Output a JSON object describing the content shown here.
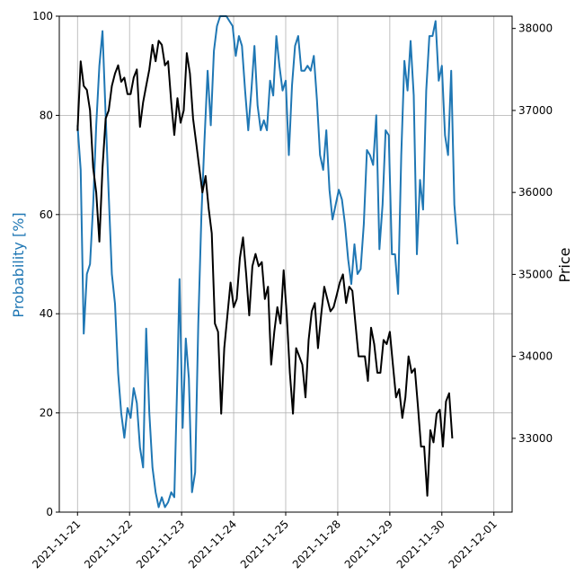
{
  "chart_data": {
    "type": "line",
    "title": "",
    "xlabel": "",
    "ylabel": "Probability [%]",
    "y2label": "Price",
    "ylim": [
      0,
      100
    ],
    "y2lim": [
      32100,
      38150
    ],
    "xlim": [
      -0.35,
      8.35
    ],
    "grid": true,
    "x_tick_labels": [
      "2021-11-21",
      "2021-11-22",
      "2021-11-23",
      "2021-11-24",
      "2021-11-25",
      "2021-11-28",
      "2021-11-29",
      "2021-11-30",
      "2021-12-01"
    ],
    "y_ticks": [
      0,
      20,
      40,
      60,
      80,
      100
    ],
    "y2_ticks": [
      33000,
      34000,
      35000,
      36000,
      37000,
      38000
    ],
    "colors": {
      "probability": "#1f77b4",
      "price": "#000000",
      "grid": "#b0b0b0"
    },
    "series": [
      {
        "axis": "left",
        "color": "#1f77b4",
        "points": [
          [
            0.0,
            78
          ],
          [
            0.06,
            69
          ],
          [
            0.12,
            36
          ],
          [
            0.18,
            48
          ],
          [
            0.24,
            50
          ],
          [
            0.3,
            62
          ],
          [
            0.36,
            78
          ],
          [
            0.42,
            90
          ],
          [
            0.48,
            97
          ],
          [
            0.54,
            80
          ],
          [
            0.6,
            64
          ],
          [
            0.66,
            48
          ],
          [
            0.72,
            42
          ],
          [
            0.78,
            28
          ],
          [
            0.84,
            20
          ],
          [
            0.9,
            15
          ],
          [
            0.96,
            21
          ],
          [
            1.02,
            19
          ],
          [
            1.08,
            25
          ],
          [
            1.14,
            22
          ],
          [
            1.2,
            13
          ],
          [
            1.26,
            9
          ],
          [
            1.32,
            37
          ],
          [
            1.38,
            20
          ],
          [
            1.44,
            9
          ],
          [
            1.5,
            4
          ],
          [
            1.56,
            1
          ],
          [
            1.62,
            3
          ],
          [
            1.68,
            1
          ],
          [
            1.74,
            2
          ],
          [
            1.8,
            4
          ],
          [
            1.86,
            3
          ],
          [
            1.92,
            28
          ],
          [
            1.96,
            47
          ],
          [
            2.02,
            17
          ],
          [
            2.08,
            35
          ],
          [
            2.14,
            27
          ],
          [
            2.2,
            4
          ],
          [
            2.26,
            8
          ],
          [
            2.32,
            38
          ],
          [
            2.38,
            60
          ],
          [
            2.44,
            75
          ],
          [
            2.5,
            89
          ],
          [
            2.56,
            78
          ],
          [
            2.62,
            93
          ],
          [
            2.68,
            98
          ],
          [
            2.74,
            100
          ],
          [
            2.8,
            100
          ],
          [
            2.86,
            100
          ],
          [
            2.92,
            99
          ],
          [
            2.98,
            98
          ],
          [
            3.04,
            92
          ],
          [
            3.1,
            96
          ],
          [
            3.16,
            94
          ],
          [
            3.22,
            85
          ],
          [
            3.28,
            77
          ],
          [
            3.34,
            85
          ],
          [
            3.4,
            94
          ],
          [
            3.46,
            82
          ],
          [
            3.52,
            77
          ],
          [
            3.58,
            79
          ],
          [
            3.64,
            77
          ],
          [
            3.7,
            87
          ],
          [
            3.76,
            84
          ],
          [
            3.82,
            96
          ],
          [
            3.88,
            90
          ],
          [
            3.94,
            85
          ],
          [
            4.0,
            87
          ],
          [
            4.06,
            72
          ],
          [
            4.12,
            86
          ],
          [
            4.18,
            94
          ],
          [
            4.24,
            96
          ],
          [
            4.3,
            89
          ],
          [
            4.36,
            89
          ],
          [
            4.42,
            90
          ],
          [
            4.48,
            89
          ],
          [
            4.54,
            92
          ],
          [
            4.6,
            83
          ],
          [
            4.66,
            72
          ],
          [
            4.72,
            69
          ],
          [
            4.78,
            77
          ],
          [
            4.84,
            65
          ],
          [
            4.9,
            59
          ],
          [
            4.96,
            62
          ],
          [
            5.02,
            65
          ],
          [
            5.08,
            63
          ],
          [
            5.14,
            58
          ],
          [
            5.2,
            51
          ],
          [
            5.26,
            46
          ],
          [
            5.32,
            54
          ],
          [
            5.38,
            48
          ],
          [
            5.44,
            49
          ],
          [
            5.5,
            58
          ],
          [
            5.56,
            73
          ],
          [
            5.62,
            72
          ],
          [
            5.68,
            70
          ],
          [
            5.74,
            80
          ],
          [
            5.8,
            53
          ],
          [
            5.86,
            62
          ],
          [
            5.92,
            77
          ],
          [
            5.98,
            76
          ],
          [
            6.04,
            52
          ],
          [
            6.1,
            52
          ],
          [
            6.16,
            44
          ],
          [
            6.22,
            72
          ],
          [
            6.28,
            91
          ],
          [
            6.34,
            85
          ],
          [
            6.4,
            95
          ],
          [
            6.46,
            84
          ],
          [
            6.52,
            52
          ],
          [
            6.58,
            67
          ],
          [
            6.64,
            61
          ],
          [
            6.7,
            85
          ],
          [
            6.76,
            96
          ],
          [
            6.82,
            96
          ],
          [
            6.88,
            99
          ],
          [
            6.94,
            87
          ],
          [
            7.0,
            90
          ],
          [
            7.06,
            76
          ],
          [
            7.12,
            72
          ],
          [
            7.18,
            89
          ],
          [
            7.24,
            62
          ],
          [
            7.3,
            54
          ]
        ]
      },
      {
        "axis": "right",
        "color": "#000000",
        "points": [
          [
            0.0,
            36750
          ],
          [
            0.06,
            37600
          ],
          [
            0.12,
            37300
          ],
          [
            0.18,
            37250
          ],
          [
            0.24,
            37000
          ],
          [
            0.3,
            36300
          ],
          [
            0.36,
            36000
          ],
          [
            0.42,
            35400
          ],
          [
            0.48,
            36300
          ],
          [
            0.54,
            36900
          ],
          [
            0.6,
            37000
          ],
          [
            0.66,
            37300
          ],
          [
            0.72,
            37450
          ],
          [
            0.78,
            37550
          ],
          [
            0.84,
            37350
          ],
          [
            0.9,
            37400
          ],
          [
            0.96,
            37200
          ],
          [
            1.02,
            37200
          ],
          [
            1.08,
            37400
          ],
          [
            1.14,
            37500
          ],
          [
            1.2,
            36800
          ],
          [
            1.26,
            37100
          ],
          [
            1.32,
            37300
          ],
          [
            1.38,
            37500
          ],
          [
            1.44,
            37800
          ],
          [
            1.5,
            37600
          ],
          [
            1.56,
            37850
          ],
          [
            1.62,
            37800
          ],
          [
            1.68,
            37550
          ],
          [
            1.74,
            37600
          ],
          [
            1.8,
            37100
          ],
          [
            1.86,
            36700
          ],
          [
            1.92,
            37150
          ],
          [
            1.98,
            36850
          ],
          [
            2.04,
            37000
          ],
          [
            2.1,
            37700
          ],
          [
            2.16,
            37450
          ],
          [
            2.22,
            36900
          ],
          [
            2.28,
            36600
          ],
          [
            2.34,
            36300
          ],
          [
            2.4,
            36000
          ],
          [
            2.46,
            36200
          ],
          [
            2.52,
            35800
          ],
          [
            2.58,
            35500
          ],
          [
            2.64,
            34400
          ],
          [
            2.7,
            34300
          ],
          [
            2.76,
            33300
          ],
          [
            2.82,
            34100
          ],
          [
            2.88,
            34500
          ],
          [
            2.94,
            34900
          ],
          [
            3.0,
            34600
          ],
          [
            3.06,
            34700
          ],
          [
            3.12,
            35200
          ],
          [
            3.18,
            35450
          ],
          [
            3.24,
            35000
          ],
          [
            3.3,
            34500
          ],
          [
            3.36,
            35100
          ],
          [
            3.42,
            35250
          ],
          [
            3.48,
            35100
          ],
          [
            3.54,
            35150
          ],
          [
            3.6,
            34700
          ],
          [
            3.66,
            34850
          ],
          [
            3.72,
            33900
          ],
          [
            3.78,
            34300
          ],
          [
            3.84,
            34600
          ],
          [
            3.9,
            34400
          ],
          [
            3.96,
            35050
          ],
          [
            4.02,
            34500
          ],
          [
            4.08,
            33800
          ],
          [
            4.14,
            33300
          ],
          [
            4.2,
            34100
          ],
          [
            4.26,
            34000
          ],
          [
            4.32,
            33900
          ],
          [
            4.38,
            33500
          ],
          [
            4.44,
            34200
          ],
          [
            4.5,
            34550
          ],
          [
            4.56,
            34650
          ],
          [
            4.62,
            34100
          ],
          [
            4.68,
            34500
          ],
          [
            4.74,
            34850
          ],
          [
            4.8,
            34700
          ],
          [
            4.86,
            34550
          ],
          [
            4.92,
            34600
          ],
          [
            4.98,
            34750
          ],
          [
            5.04,
            34900
          ],
          [
            5.1,
            35000
          ],
          [
            5.16,
            34650
          ],
          [
            5.22,
            34850
          ],
          [
            5.28,
            34800
          ],
          [
            5.34,
            34400
          ],
          [
            5.4,
            34000
          ],
          [
            5.46,
            34000
          ],
          [
            5.52,
            34000
          ],
          [
            5.58,
            33700
          ],
          [
            5.64,
            34350
          ],
          [
            5.7,
            34150
          ],
          [
            5.76,
            33800
          ],
          [
            5.82,
            33800
          ],
          [
            5.88,
            34200
          ],
          [
            5.94,
            34150
          ],
          [
            6.0,
            34300
          ],
          [
            6.06,
            33900
          ],
          [
            6.12,
            33500
          ],
          [
            6.18,
            33600
          ],
          [
            6.24,
            33250
          ],
          [
            6.3,
            33500
          ],
          [
            6.36,
            34000
          ],
          [
            6.42,
            33800
          ],
          [
            6.48,
            33850
          ],
          [
            6.54,
            33400
          ],
          [
            6.6,
            32900
          ],
          [
            6.66,
            32900
          ],
          [
            6.72,
            32300
          ],
          [
            6.78,
            33100
          ],
          [
            6.84,
            32950
          ],
          [
            6.9,
            33300
          ],
          [
            6.96,
            33350
          ],
          [
            7.02,
            32900
          ],
          [
            7.08,
            33450
          ],
          [
            7.14,
            33550
          ],
          [
            7.2,
            33000
          ]
        ]
      }
    ]
  }
}
